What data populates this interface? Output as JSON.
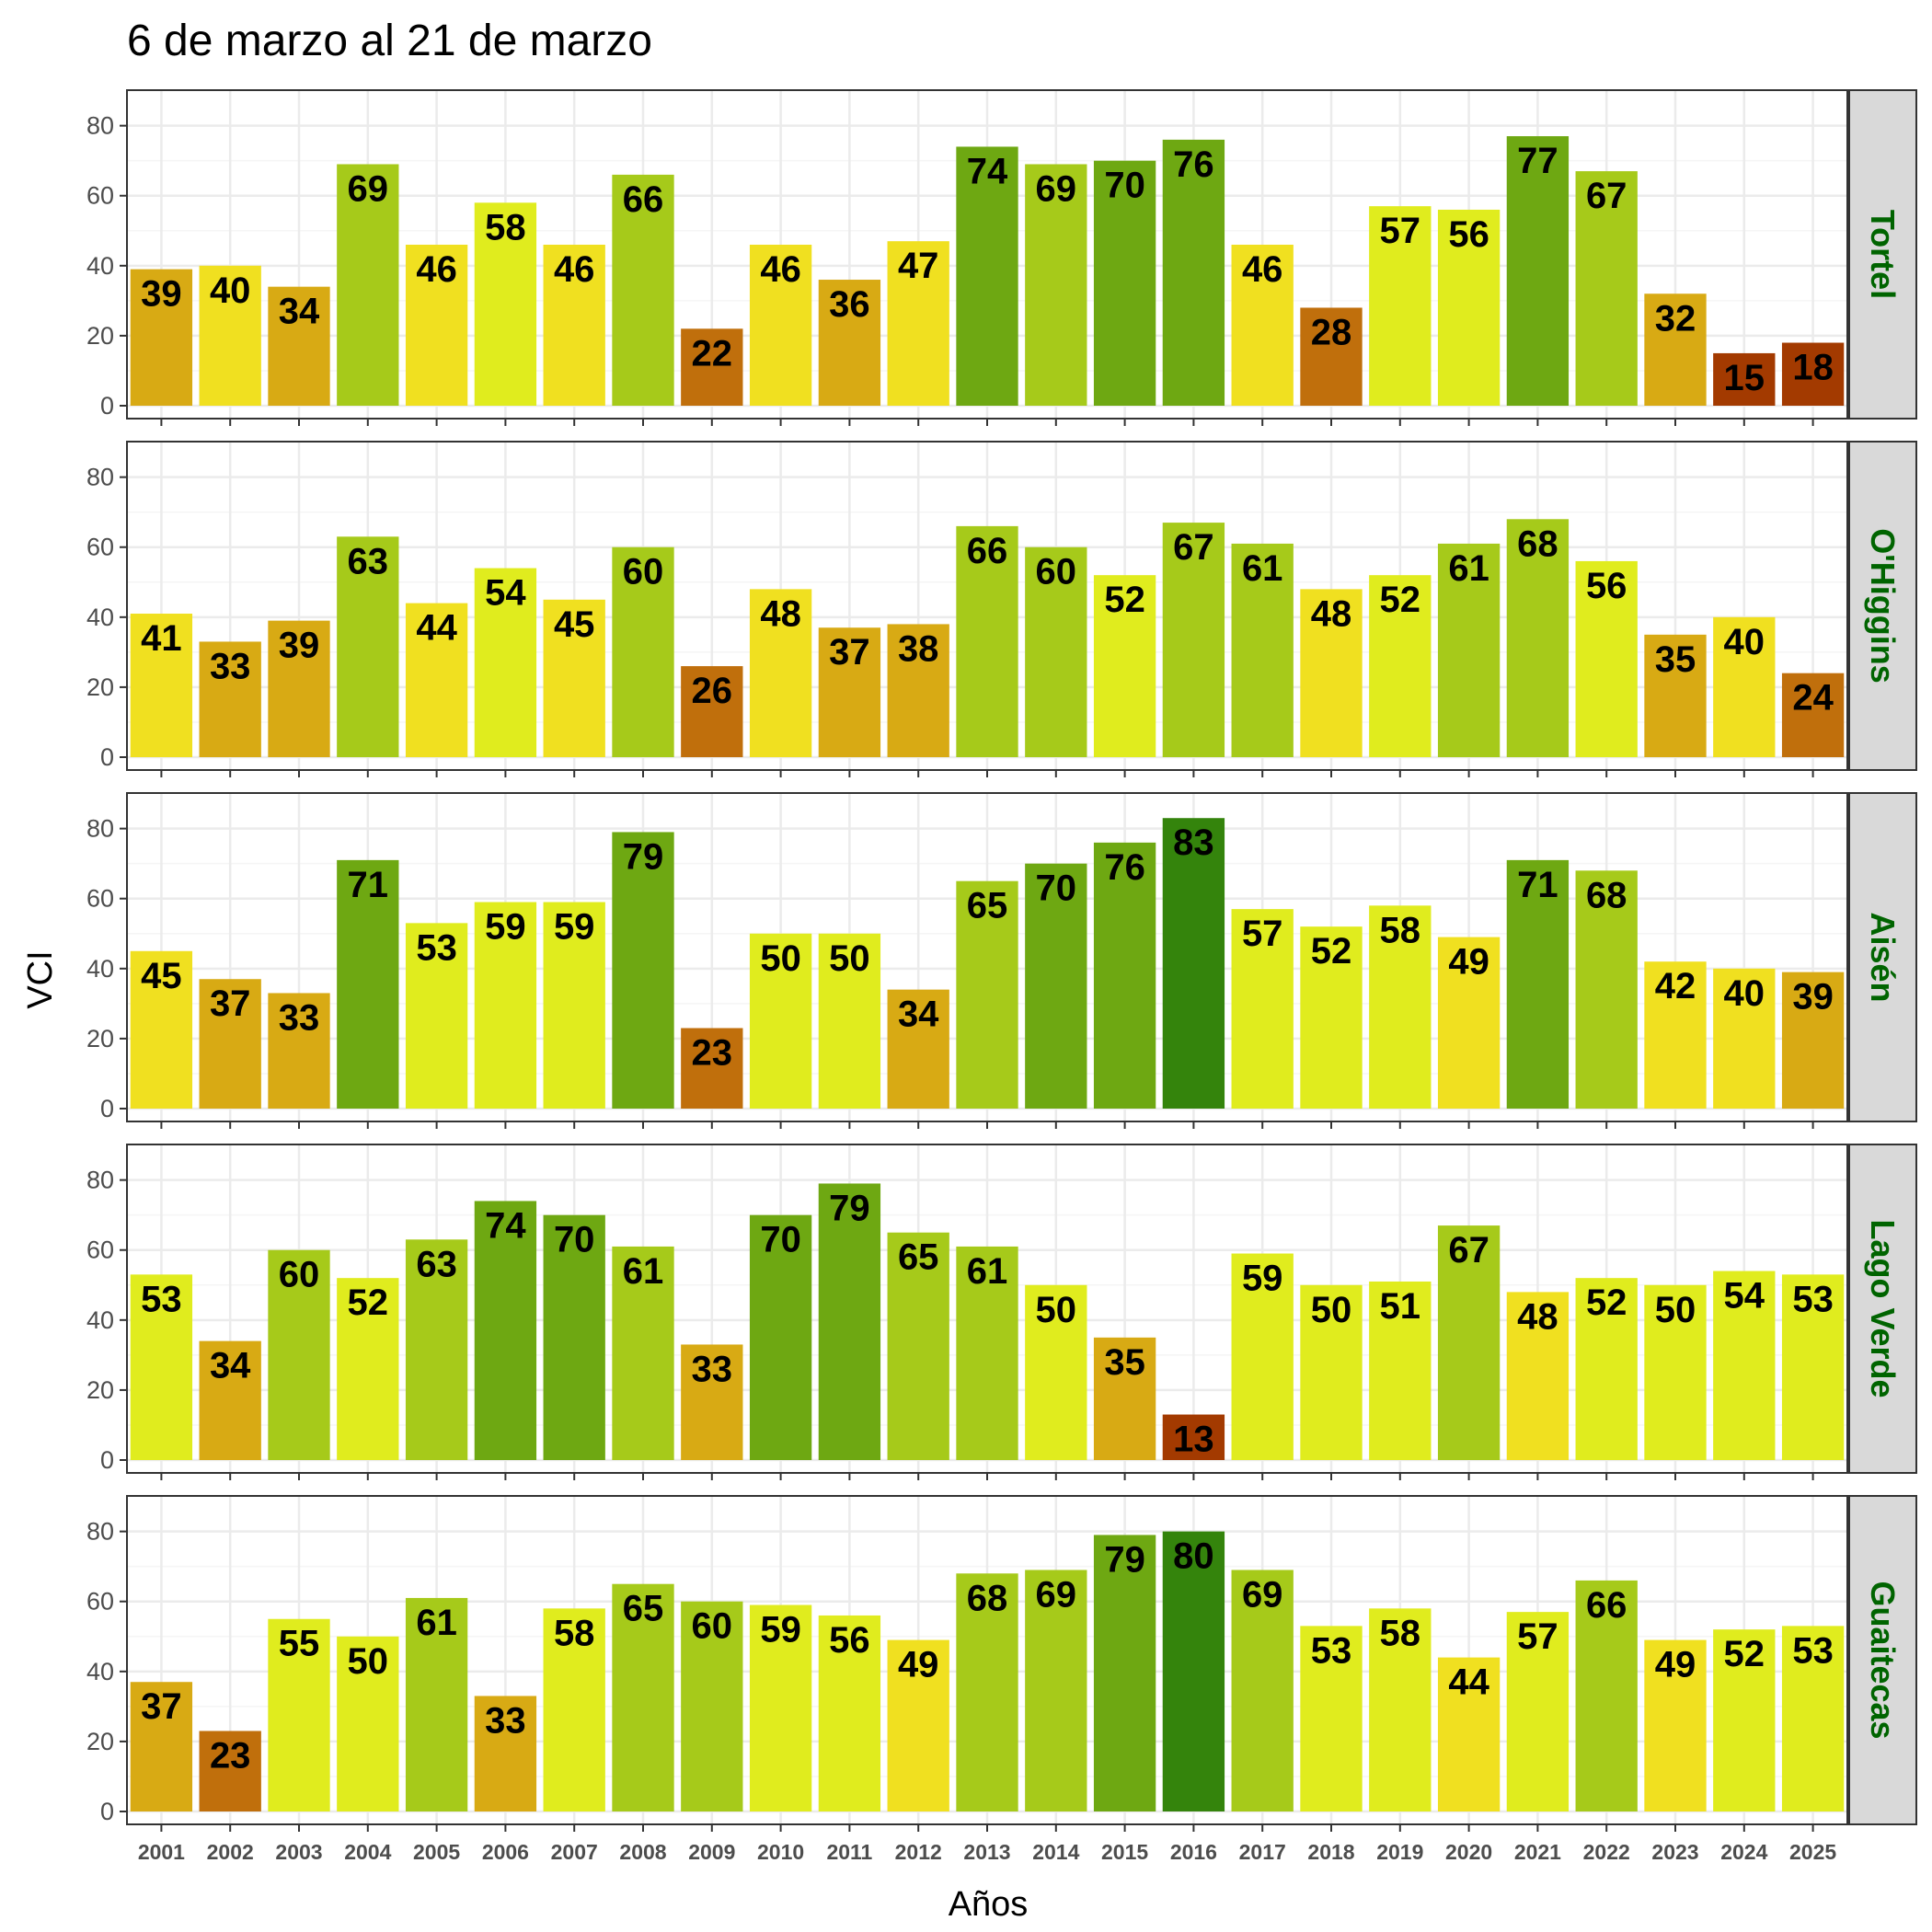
{
  "chart_data": {
    "type": "bar",
    "title": "6 de marzo al 21 de marzo",
    "xlabel": "Años",
    "ylabel": "VCI",
    "ylim": [
      0,
      87
    ],
    "yticks": [
      0,
      20,
      40,
      60,
      80
    ],
    "grid": true,
    "categories": [
      "2001",
      "2002",
      "2003",
      "2004",
      "2005",
      "2006",
      "2007",
      "2008",
      "2009",
      "2010",
      "2011",
      "2012",
      "2013",
      "2014",
      "2015",
      "2016",
      "2017",
      "2018",
      "2019",
      "2020",
      "2021",
      "2022",
      "2023",
      "2024",
      "2025"
    ],
    "panels": [
      {
        "name": "Tortel",
        "values": [
          39,
          40,
          34,
          69,
          46,
          58,
          46,
          66,
          22,
          46,
          36,
          47,
          74,
          69,
          70,
          76,
          46,
          28,
          57,
          56,
          77,
          67,
          32,
          15,
          18
        ]
      },
      {
        "name": "O'Higgins",
        "values": [
          41,
          33,
          39,
          63,
          44,
          54,
          45,
          60,
          26,
          48,
          37,
          38,
          66,
          60,
          52,
          67,
          61,
          48,
          52,
          61,
          68,
          56,
          35,
          40,
          24
        ]
      },
      {
        "name": "Aisén",
        "values": [
          45,
          37,
          33,
          71,
          53,
          59,
          59,
          79,
          23,
          50,
          50,
          34,
          65,
          70,
          76,
          83,
          57,
          52,
          58,
          49,
          71,
          68,
          42,
          40,
          39
        ]
      },
      {
        "name": "Lago Verde",
        "values": [
          53,
          34,
          60,
          52,
          63,
          74,
          70,
          61,
          33,
          70,
          79,
          65,
          61,
          50,
          35,
          13,
          59,
          50,
          51,
          67,
          48,
          52,
          50,
          54,
          53
        ]
      },
      {
        "name": "Guaitecas",
        "values": [
          37,
          23,
          55,
          50,
          61,
          33,
          58,
          65,
          60,
          59,
          56,
          49,
          68,
          69,
          79,
          80,
          69,
          53,
          58,
          44,
          57,
          66,
          49,
          52,
          53
        ]
      }
    ],
    "color_scale": [
      {
        "min": 0,
        "color": "#a33a00"
      },
      {
        "min": 20,
        "color": "#c06f0c"
      },
      {
        "min": 30,
        "color": "#d8aa14"
      },
      {
        "min": 40,
        "color": "#f0e020"
      },
      {
        "min": 50,
        "color": "#e0ec1e"
      },
      {
        "min": 60,
        "color": "#a6ca1a"
      },
      {
        "min": 70,
        "color": "#6ea812"
      },
      {
        "min": 80,
        "color": "#34840c"
      }
    ],
    "colors": {
      "strip_background": "#d9d9d9",
      "strip_text": "#006400",
      "grid_major": "#ebebeb",
      "grid_minor": "#f5f5f5",
      "panel_border": "#333333"
    }
  }
}
